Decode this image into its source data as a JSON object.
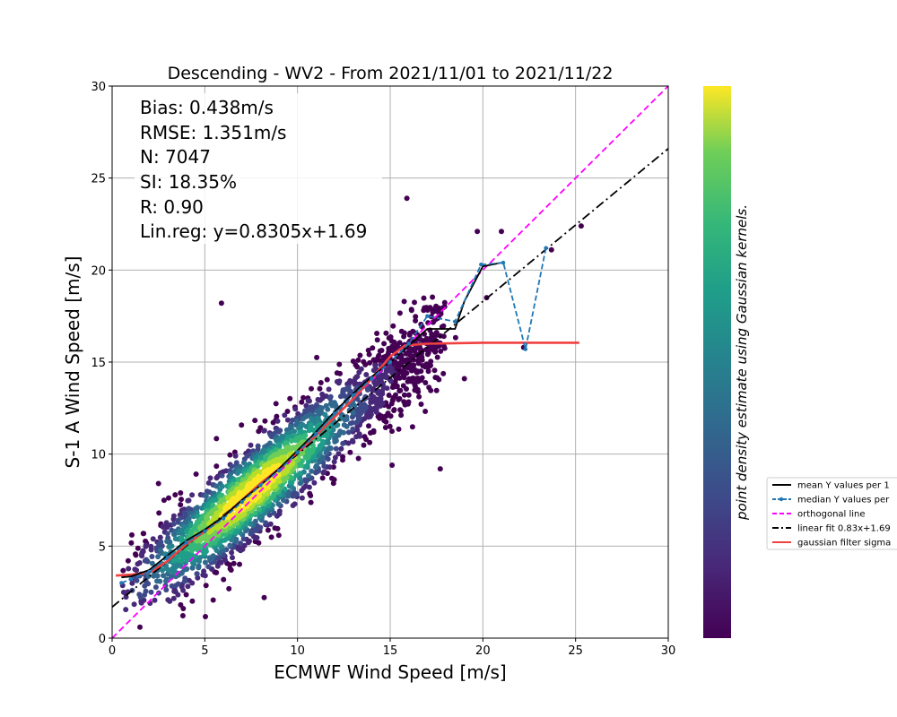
{
  "chart_data": {
    "type": "scatter",
    "title": "Descending - WV2 - From 2021/11/01 to 2021/11/22",
    "xlabel": "ECMWF Wind Speed [m/s]",
    "ylabel": "S-1 A Wind Speed [m/s]",
    "xlim": [
      0,
      30
    ],
    "ylim": [
      0,
      30
    ],
    "xticks": [
      0,
      5,
      10,
      15,
      20,
      25,
      30
    ],
    "yticks": [
      0,
      5,
      10,
      15,
      20,
      25,
      30
    ],
    "grid": true,
    "stats": {
      "bias": "Bias: 0.438m/s",
      "rmse": "RMSE: 1.351m/s",
      "n": "N: 7047",
      "si": "SI: 18.35%",
      "r": "R: 0.90",
      "linreg": "Lin.reg: y=0.8305x+1.69"
    },
    "colorbar_label": "point density estimate using Gaussian kernels.",
    "colormap": "viridis",
    "legend_position": "right, outside plot",
    "scatter_summary": {
      "n_points": 7047,
      "fit_slope": 0.8305,
      "fit_intercept": 1.69,
      "x_range": [
        0.5,
        25.3
      ],
      "outliers": [
        [
          1.5,
          0.6
        ],
        [
          5.9,
          18.2
        ],
        [
          15.9,
          23.9
        ],
        [
          17.7,
          9.2
        ],
        [
          15.1,
          9.4
        ],
        [
          19.0,
          14.1
        ],
        [
          21.0,
          22.1
        ],
        [
          23.7,
          21.1
        ],
        [
          25.3,
          22.4
        ],
        [
          22.2,
          15.8
        ],
        [
          20.2,
          18.5
        ],
        [
          19.7,
          22.1
        ],
        [
          8.2,
          2.2
        ]
      ]
    },
    "series": [
      {
        "name": "mean Y values per 1",
        "style": "solid",
        "color": "#000000",
        "x": [
          0.5,
          1.0,
          2.0,
          3.0,
          4.0,
          5.0,
          6.0,
          7.0,
          8.0,
          9.0,
          10.0,
          11.0,
          12.0,
          13.0,
          14.0,
          15.0,
          16.0,
          17.0,
          18.5,
          19.0,
          20.0,
          21.0
        ],
        "y": [
          3.3,
          3.35,
          3.7,
          4.5,
          5.3,
          5.9,
          6.6,
          7.5,
          8.3,
          9.2,
          10.2,
          11.2,
          12.3,
          13.3,
          14.2,
          15.0,
          15.9,
          16.8,
          16.8,
          18.3,
          20.2,
          20.4
        ]
      },
      {
        "name": "median Y values per",
        "style": "dashed-dot-markers",
        "color": "#1f77b4",
        "x": [
          0.5,
          1.0,
          2.0,
          3.0,
          4.0,
          5.0,
          6.0,
          7.0,
          8.0,
          9.0,
          10.0,
          11.0,
          12.0,
          13.0,
          14.0,
          15.0,
          16.0,
          17.0,
          18.5,
          19.9,
          21.1,
          22.3,
          23.4
        ],
        "y": [
          3.0,
          3.2,
          3.6,
          4.4,
          5.2,
          5.8,
          6.5,
          7.4,
          8.3,
          9.1,
          10.1,
          11.1,
          12.2,
          13.2,
          14.1,
          15.0,
          16.0,
          17.5,
          17.2,
          20.3,
          20.4,
          15.7,
          21.2
        ]
      },
      {
        "name": "orthogonal line",
        "style": "dashed",
        "color": "#ff00ff",
        "x": [
          0,
          30
        ],
        "y": [
          0,
          30
        ]
      },
      {
        "name": "linear fit 0.83x+1.69",
        "style": "dashdot",
        "color": "#000000",
        "x": [
          0,
          30
        ],
        "y": [
          1.69,
          26.6
        ]
      },
      {
        "name": "gaussian filter sigma",
        "style": "solid",
        "color": "#f04040",
        "x": [
          0.2,
          1.0,
          2.0,
          3.0,
          4.0,
          5.0,
          6.0,
          7.0,
          8.0,
          9.0,
          10.0,
          11.0,
          12.0,
          13.0,
          14.0,
          15.0,
          15.8,
          17.0,
          20.0,
          25.2
        ],
        "y": [
          3.4,
          3.45,
          3.55,
          4.2,
          5.1,
          5.8,
          6.6,
          7.5,
          8.4,
          9.2,
          10.1,
          11.0,
          12.0,
          13.0,
          14.1,
          15.3,
          15.9,
          16.0,
          16.05,
          16.05
        ]
      }
    ]
  }
}
